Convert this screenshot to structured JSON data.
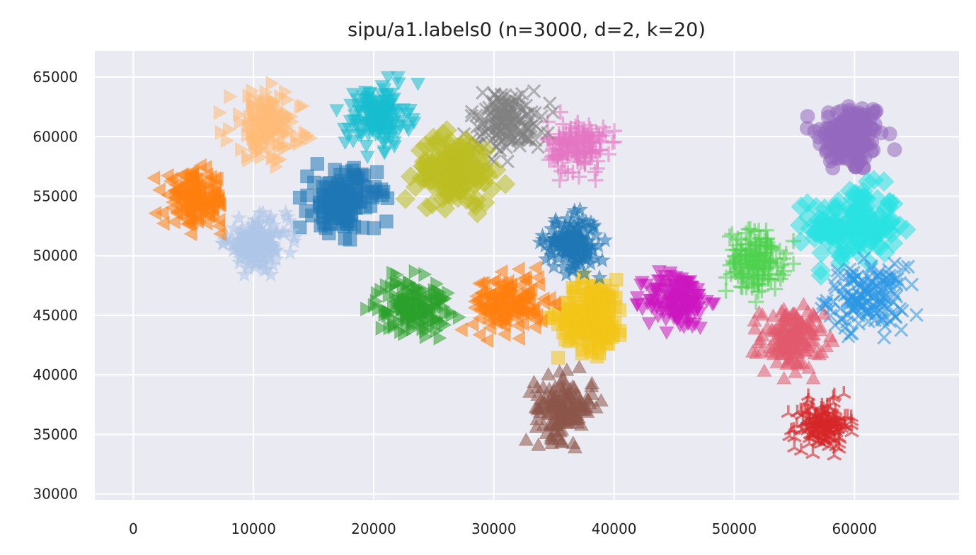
{
  "chart_data": {
    "type": "scatter",
    "title": "sipu/a1.labels0 (n=3000, d=2, k=20)",
    "xlabel": "",
    "ylabel": "",
    "xlim": [
      -3200,
      68700
    ],
    "ylim": [
      29500,
      67200
    ],
    "x_ticks": [
      0,
      10000,
      20000,
      30000,
      40000,
      50000,
      60000
    ],
    "y_ticks": [
      30000,
      35000,
      40000,
      45000,
      50000,
      55000,
      60000,
      65000
    ],
    "x_tick_labels": [
      "0",
      "10000",
      "20000",
      "30000",
      "40000",
      "50000",
      "60000"
    ],
    "y_tick_labels": [
      "30000",
      "35000",
      "40000",
      "45000",
      "50000",
      "55000",
      "60000",
      "65000"
    ],
    "grid": true,
    "legend": "none",
    "background_color": "#eaeaf2",
    "clusters": [
      {
        "marker": "circle",
        "color": "#9467bd",
        "center": [
          59700,
          60000
        ],
        "spread": [
          1400,
          1500
        ]
      },
      {
        "marker": "diamond",
        "color": "#29e2e2",
        "center": [
          60000,
          52500
        ],
        "spread": [
          1800,
          1600
        ]
      },
      {
        "marker": "x",
        "color": "#2b97e4",
        "center": [
          61000,
          46500
        ],
        "spread": [
          1600,
          1300
        ]
      },
      {
        "marker": "plus",
        "color": "#4fd14f",
        "center": [
          51800,
          49500
        ],
        "spread": [
          1200,
          1300
        ]
      },
      {
        "marker": "triangle-up",
        "color": "#e15a6e",
        "center": [
          54800,
          43000
        ],
        "spread": [
          1300,
          1300
        ]
      },
      {
        "marker": "tri-down",
        "color": "#d62728",
        "center": [
          57300,
          35800
        ],
        "spread": [
          1100,
          1000
        ]
      },
      {
        "marker": "triangle-down",
        "color": "#cc18c0",
        "center": [
          45300,
          46300
        ],
        "spread": [
          1300,
          1200
        ]
      },
      {
        "marker": "square",
        "color": "#f2c517",
        "center": [
          38200,
          45000
        ],
        "spread": [
          1400,
          1500
        ]
      },
      {
        "marker": "triangle-up",
        "color": "#8c564b",
        "center": [
          35800,
          37200
        ],
        "spread": [
          1200,
          1300
        ]
      },
      {
        "marker": "star",
        "color": "#1f77b4",
        "center": [
          36500,
          51000
        ],
        "spread": [
          1100,
          1100
        ]
      },
      {
        "marker": "triangle-left",
        "color": "#ff7f0e",
        "center": [
          31300,
          46000
        ],
        "spread": [
          1500,
          1200
        ]
      },
      {
        "marker": "triangle-right",
        "color": "#2ca02c",
        "center": [
          23200,
          45800
        ],
        "spread": [
          1500,
          1100
        ]
      },
      {
        "marker": "plus",
        "color": "#e377c2",
        "center": [
          36900,
          59200
        ],
        "spread": [
          1200,
          1100
        ]
      },
      {
        "marker": "x",
        "color": "#7f7f7f",
        "center": [
          31000,
          61300
        ],
        "spread": [
          1500,
          1300
        ]
      },
      {
        "marker": "diamond",
        "color": "#bcbd22",
        "center": [
          26800,
          57200
        ],
        "spread": [
          1600,
          1400
        ]
      },
      {
        "marker": "triangle-down",
        "color": "#17becf",
        "center": [
          20300,
          61700
        ],
        "spread": [
          1300,
          1300
        ]
      },
      {
        "marker": "square",
        "color": "#1f77b4",
        "center": [
          17500,
          54600
        ],
        "spread": [
          1400,
          1300
        ]
      },
      {
        "marker": "triangle-right",
        "color": "#ffbb78",
        "center": [
          11000,
          60900
        ],
        "spread": [
          1500,
          1400
        ]
      },
      {
        "marker": "star",
        "color": "#aec7e8",
        "center": [
          10300,
          51000
        ],
        "spread": [
          1300,
          1000
        ]
      },
      {
        "marker": "triangle-left",
        "color": "#ff7f0e",
        "center": [
          5200,
          54700
        ],
        "spread": [
          1300,
          1100
        ]
      }
    ],
    "points_per_cluster": 150
  }
}
